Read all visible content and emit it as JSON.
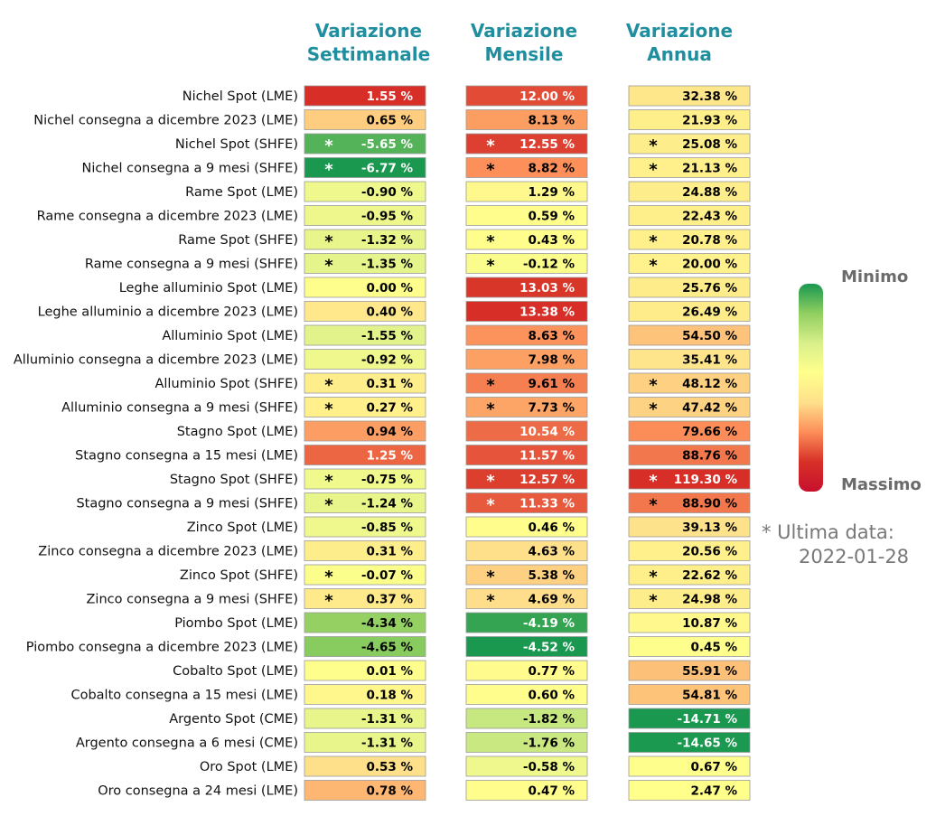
{
  "chart_data": {
    "type": "heatmap",
    "columns": [
      "Variazione Settimanale",
      "Variazione Mensile",
      "Variazione Annua"
    ],
    "column_headers": [
      [
        "Variazione",
        "Settimanale"
      ],
      [
        "Variazione",
        "Mensile"
      ],
      [
        "Variazione",
        "Annua"
      ]
    ],
    "rows": [
      {
        "label": "Nichel Spot (LME)",
        "values": [
          1.55,
          12.0,
          32.38
        ],
        "marked": false
      },
      {
        "label": "Nichel consegna a dicembre 2023 (LME)",
        "values": [
          0.65,
          8.13,
          21.93
        ],
        "marked": false
      },
      {
        "label": "Nichel Spot (SHFE)",
        "values": [
          -5.65,
          12.55,
          25.08
        ],
        "marked": true
      },
      {
        "label": "Nichel consegna a 9 mesi (SHFE)",
        "values": [
          -6.77,
          8.82,
          21.13
        ],
        "marked": true
      },
      {
        "label": "Rame Spot (LME)",
        "values": [
          -0.9,
          1.29,
          24.88
        ],
        "marked": false
      },
      {
        "label": "Rame consegna a dicembre 2023 (LME)",
        "values": [
          -0.95,
          0.59,
          22.43
        ],
        "marked": false
      },
      {
        "label": "Rame Spot (SHFE)",
        "values": [
          -1.32,
          0.43,
          20.78
        ],
        "marked": true
      },
      {
        "label": "Rame consegna a 9 mesi (SHFE)",
        "values": [
          -1.35,
          -0.12,
          20.0
        ],
        "marked": true
      },
      {
        "label": "Leghe alluminio Spot (LME)",
        "values": [
          0.0,
          13.03,
          25.76
        ],
        "marked": false
      },
      {
        "label": "Leghe alluminio a dicembre 2023 (LME)",
        "values": [
          0.4,
          13.38,
          26.49
        ],
        "marked": false
      },
      {
        "label": "Alluminio Spot (LME)",
        "values": [
          -1.55,
          8.63,
          54.5
        ],
        "marked": false
      },
      {
        "label": "Alluminio consegna a dicembre 2023 (LME)",
        "values": [
          -0.92,
          7.98,
          35.41
        ],
        "marked": false
      },
      {
        "label": "Alluminio Spot (SHFE)",
        "values": [
          0.31,
          9.61,
          48.12
        ],
        "marked": true
      },
      {
        "label": "Alluminio consegna a 9 mesi (SHFE)",
        "values": [
          0.27,
          7.73,
          47.42
        ],
        "marked": true
      },
      {
        "label": "Stagno Spot (LME)",
        "values": [
          0.94,
          10.54,
          79.66
        ],
        "marked": false
      },
      {
        "label": "Stagno consegna a 15 mesi (LME)",
        "values": [
          1.25,
          11.57,
          88.76
        ],
        "marked": false
      },
      {
        "label": "Stagno Spot (SHFE)",
        "values": [
          -0.75,
          12.57,
          119.3
        ],
        "marked": true
      },
      {
        "label": "Stagno consegna a 9 mesi (SHFE)",
        "values": [
          -1.24,
          11.33,
          88.9
        ],
        "marked": true
      },
      {
        "label": "Zinco Spot (LME)",
        "values": [
          -0.85,
          0.46,
          39.13
        ],
        "marked": false
      },
      {
        "label": "Zinco consegna a dicembre 2023 (LME)",
        "values": [
          0.31,
          4.63,
          20.56
        ],
        "marked": false
      },
      {
        "label": "Zinco Spot (SHFE)",
        "values": [
          -0.07,
          5.38,
          22.62
        ],
        "marked": true
      },
      {
        "label": "Zinco consegna a 9 mesi (SHFE)",
        "values": [
          0.37,
          4.69,
          24.98
        ],
        "marked": true
      },
      {
        "label": "Piombo Spot (LME)",
        "values": [
          -4.34,
          -4.19,
          10.87
        ],
        "marked": false
      },
      {
        "label": "Piombo consegna a dicembre 2023 (LME)",
        "values": [
          -4.65,
          -4.52,
          0.45
        ],
        "marked": false
      },
      {
        "label": "Cobalto Spot (LME)",
        "values": [
          0.01,
          0.77,
          55.91
        ],
        "marked": false
      },
      {
        "label": "Cobalto consegna a 15 mesi (LME)",
        "values": [
          0.18,
          0.6,
          54.81
        ],
        "marked": false
      },
      {
        "label": "Argento Spot (CME)",
        "values": [
          -1.31,
          -1.82,
          -14.71
        ],
        "marked": false
      },
      {
        "label": "Argento consegna a 6 mesi (CME)",
        "values": [
          -1.31,
          -1.76,
          -14.65
        ],
        "marked": false
      },
      {
        "label": "Oro Spot (LME)",
        "values": [
          0.53,
          -0.58,
          0.67
        ],
        "marked": false
      },
      {
        "label": "Oro consegna a 24 mesi (LME)",
        "values": [
          0.78,
          0.47,
          2.47
        ],
        "marked": false
      }
    ],
    "value_suffix": " %",
    "marker_symbol": "*",
    "legend": {
      "min_label": "Minimo",
      "max_label": "Massimo",
      "placement": "right"
    },
    "colormap_stops": [
      "#1a9850",
      "#91cf60",
      "#d9ef8b",
      "#ffff8c",
      "#fee08b",
      "#fc8d59",
      "#d73027",
      "#c8102e"
    ],
    "grid": false
  },
  "note": {
    "prefix": "* Ultima data:",
    "date": "2022-01-28"
  }
}
